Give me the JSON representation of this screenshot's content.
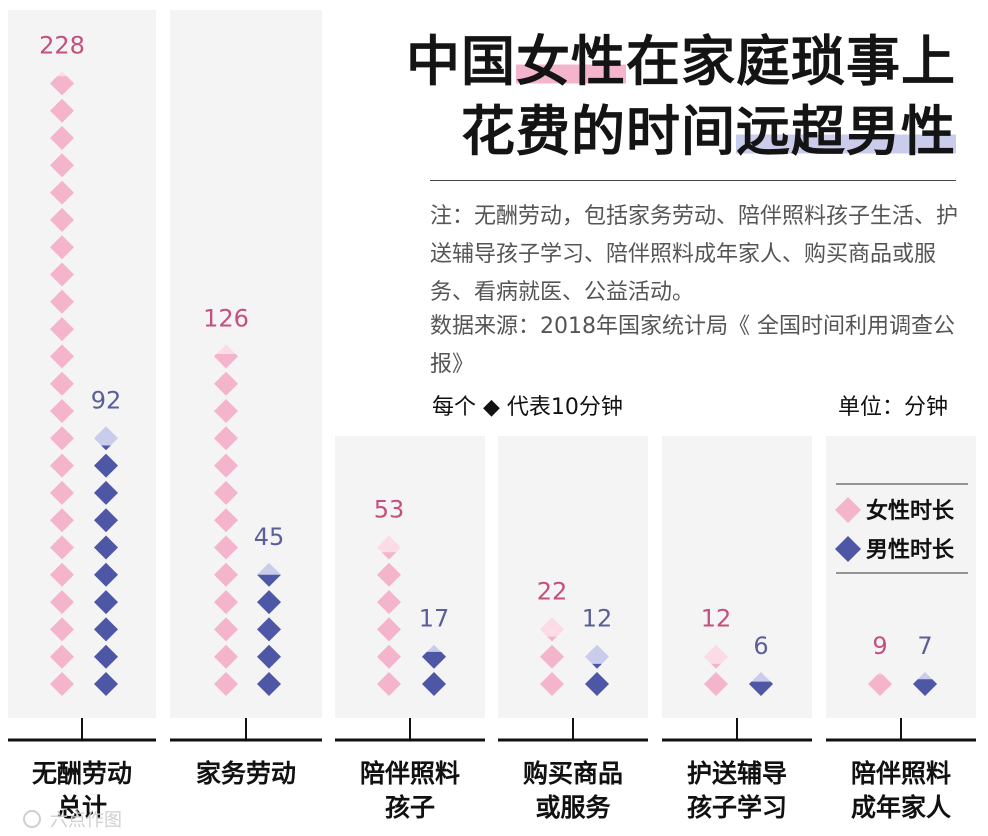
{
  "title": {
    "line1_a": "中国",
    "line1_hl": "女性",
    "line1_b": "在家庭琐事上",
    "line2_a": "花费的时间",
    "line2_hl": "远超男性"
  },
  "note": "注：无酬劳动，包括家务劳动、陪伴照料孩子生活、护送辅导孩子学习、陪伴照料成年家人、购买商品或服务、看病就医、公益活动。",
  "source": "数据来源：2018年国家统计局《 全国时间利用调查公报》",
  "unit_note": "每个 ◆ 代表10分钟",
  "unit": "单位：分钟",
  "colors": {
    "female": "#f4b4cb",
    "female_light": "#fbdbe6",
    "male": "#4e57a5",
    "male_light": "#c9ccea",
    "female_label": "#c4507f",
    "male_label": "#5a5f9a",
    "panel": "#f4f4f4"
  },
  "watermark": "六点作图",
  "chart_data": {
    "type": "pictograph",
    "unit_value": 10,
    "unit_label": "分钟",
    "categories": [
      "无酬劳动总计",
      "家务劳动",
      "陪伴照料孩子",
      "购买商品或服务",
      "护送辅导孩子学习",
      "陪伴照料成年家人"
    ],
    "category_labels": [
      [
        "无酬劳动",
        "总计"
      ],
      [
        "家务劳动"
      ],
      [
        "陪伴照料",
        "孩子"
      ],
      [
        "购买商品",
        "或服务"
      ],
      [
        "护送辅导",
        "孩子学习"
      ],
      [
        "陪伴照料",
        "成年家人"
      ]
    ],
    "series": [
      {
        "name": "女性时长",
        "values": [
          228,
          126,
          53,
          22,
          12,
          9
        ]
      },
      {
        "name": "男性时长",
        "values": [
          92,
          45,
          17,
          12,
          6,
          7
        ]
      }
    ]
  }
}
